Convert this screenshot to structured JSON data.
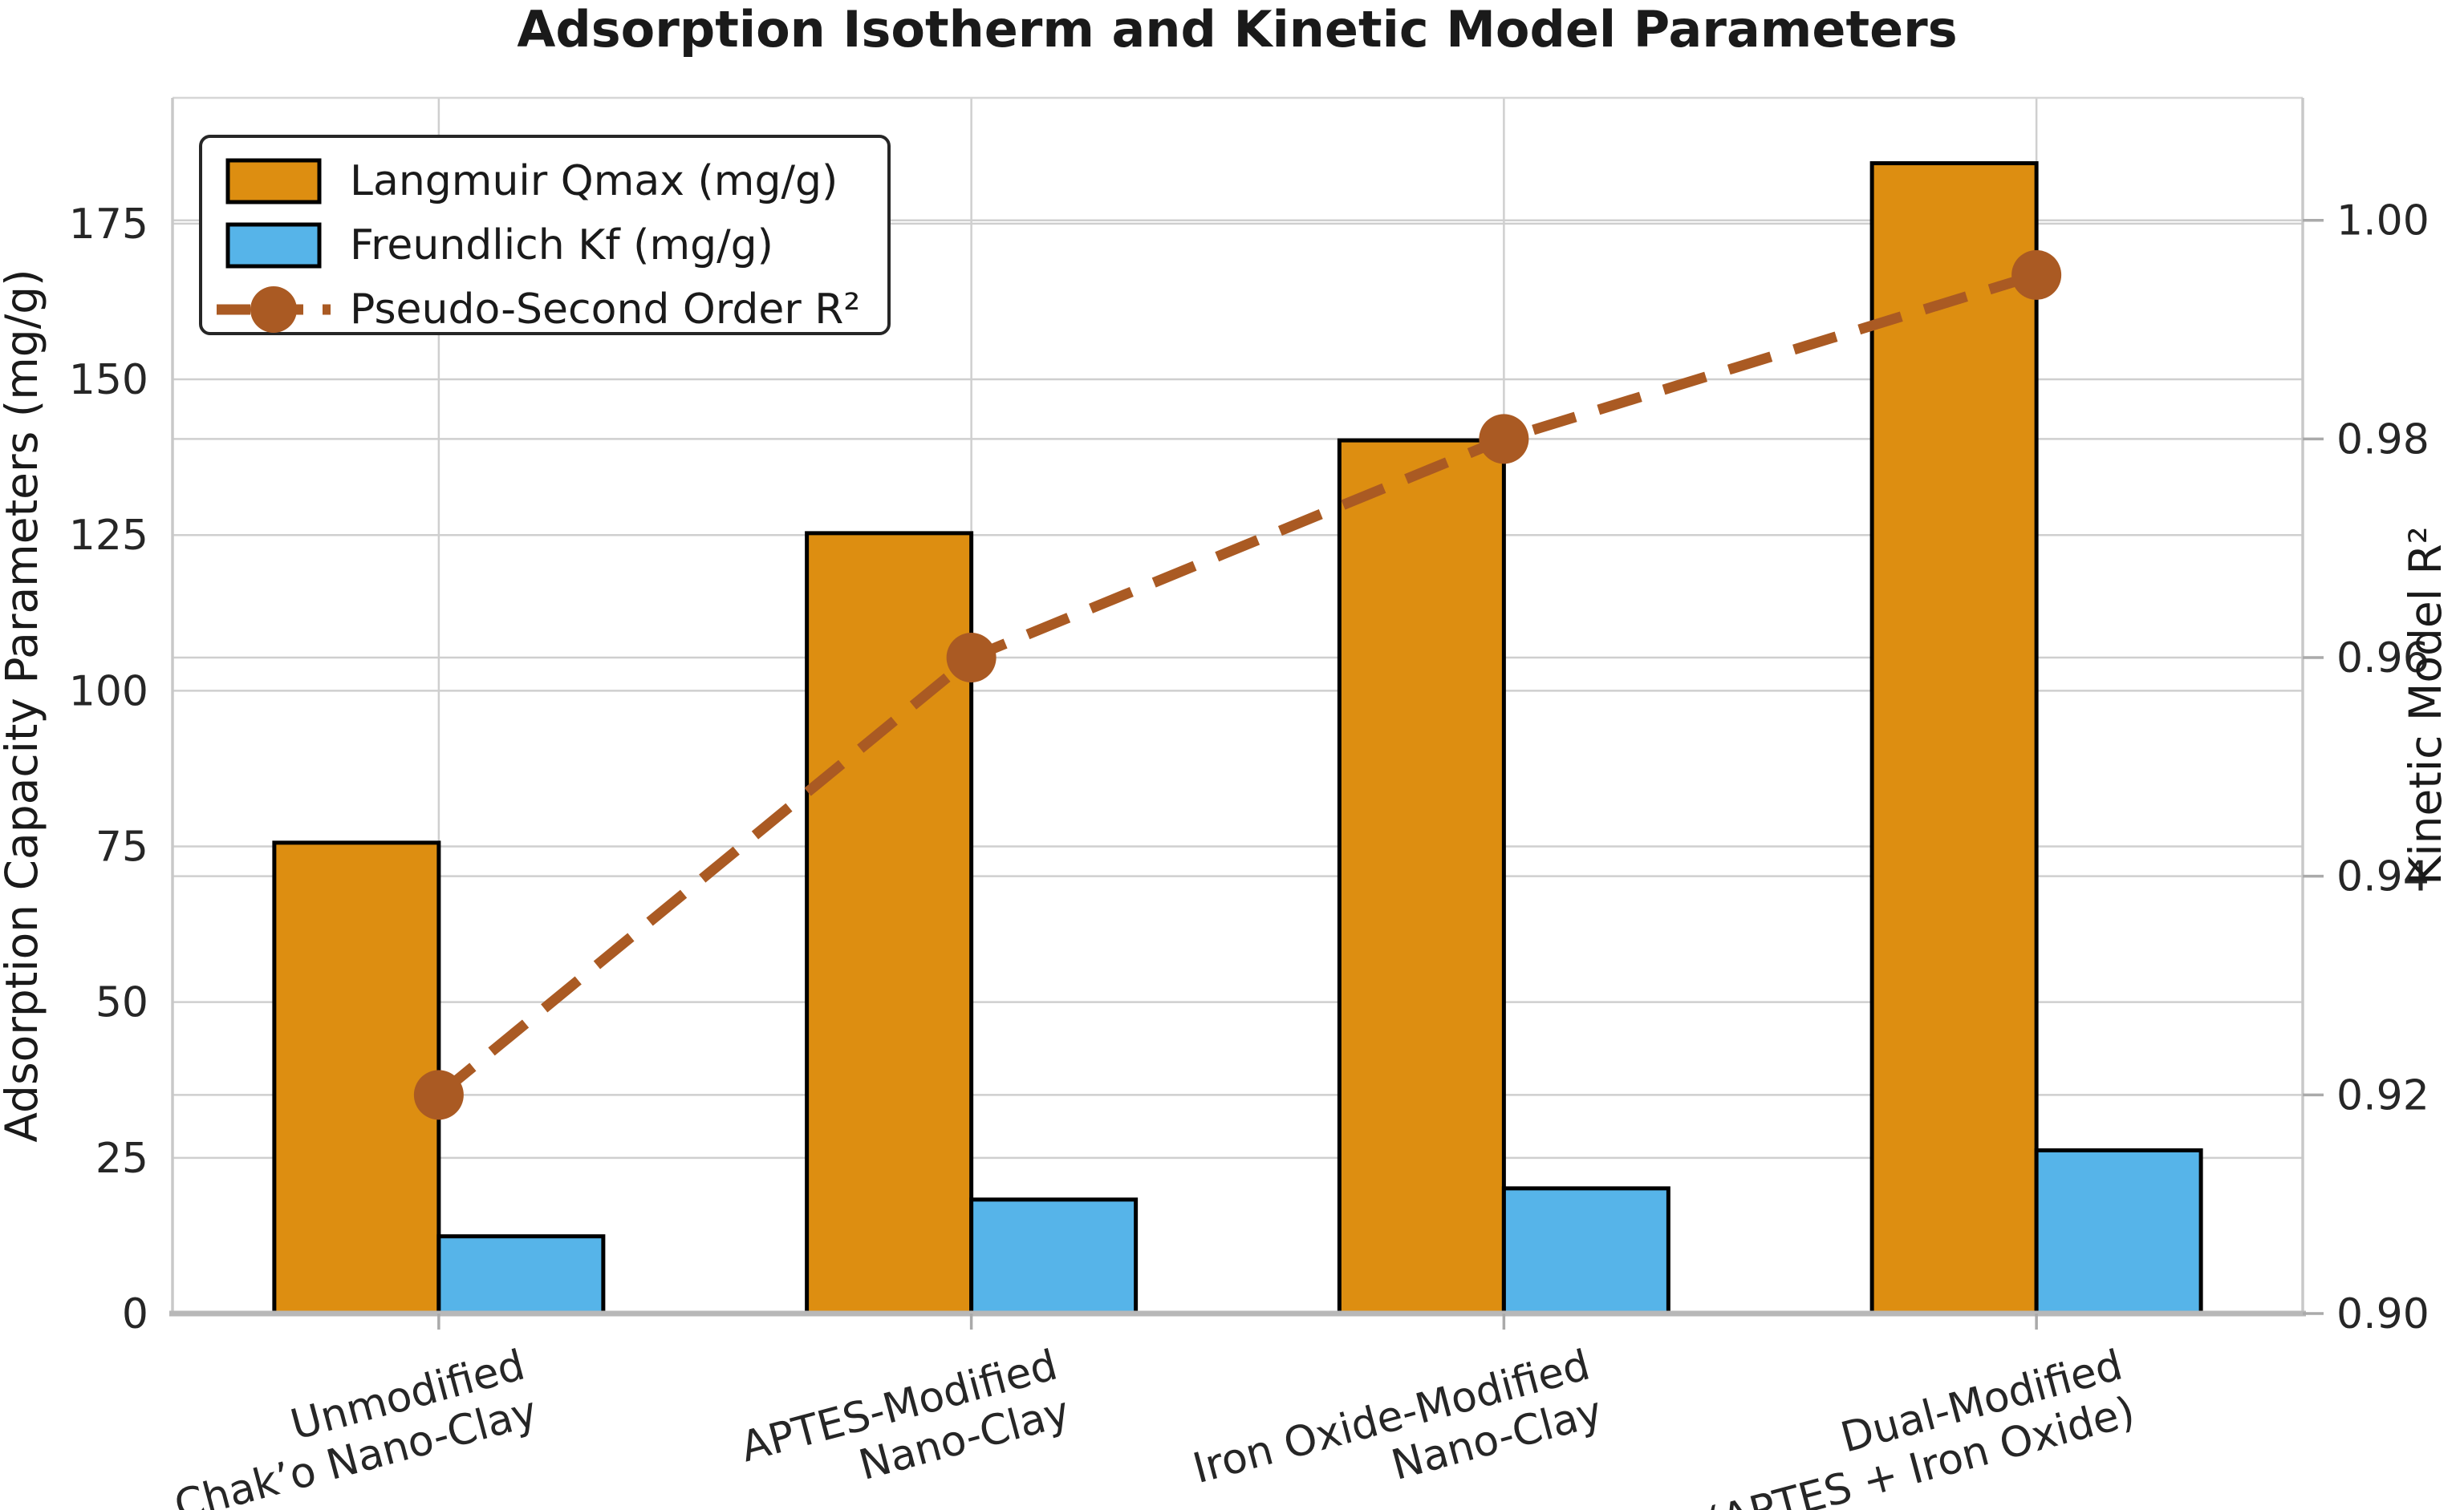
{
  "title": "Adsorption Isotherm and Kinetic Model Parameters",
  "left_axis": {
    "label": "Adsorption Capacity Parameters (mg/g)",
    "ticks": [
      "0",
      "25",
      "50",
      "75",
      "100",
      "125",
      "150",
      "175"
    ]
  },
  "right_axis": {
    "label": "Kinetic Model R²",
    "ticks": [
      "0.90",
      "0.92",
      "0.94",
      "0.96",
      "0.98",
      "1.00"
    ]
  },
  "legend": {
    "entries": [
      "Langmuir Qmax (mg/g)",
      "Freundlich Kf (mg/g)",
      "Pseudo-Second Order R²"
    ]
  },
  "colors": {
    "qmax_bar": "#DD8E11",
    "kf_bar": "#56B4E9",
    "r2_line": "#AA5A23",
    "bar_edge": "#000000",
    "grid": "#cfcfcf",
    "left_spine": "#c8c8c8",
    "bottom_spine": "#b8b8b8",
    "tick_mark": "#aaaaaa",
    "legend_border": "#262626",
    "background": "#ffffff"
  },
  "chart_data": {
    "type": "bar",
    "title": "Adsorption Isotherm and Kinetic Model Parameters",
    "categories": [
      "Unmodified Chak’o Nano-Clay",
      "APTES-Modified Nano-Clay",
      "Iron Oxide-Modified Nano-Clay",
      "Dual-Modified (APTES + Iron Oxide)"
    ],
    "category_lines": [
      [
        "Unmodified",
        "Chak’o Nano-Clay"
      ],
      [
        "APTES-Modified",
        "Nano-Clay"
      ],
      [
        "Iron Oxide-Modified",
        "Nano-Clay"
      ],
      [
        "Dual-Modified",
        "(APTES + Iron Oxide)"
      ]
    ],
    "series": [
      {
        "name": "Langmuir Qmax (mg/g)",
        "type": "bar",
        "axis": "left",
        "color": "#DD8E11",
        "values": [
          75.6,
          125.3,
          140.2,
          184.7
        ]
      },
      {
        "name": "Freundlich Kf (mg/g)",
        "type": "bar",
        "axis": "left",
        "color": "#56B4E9",
        "values": [
          12.4,
          18.3,
          20.1,
          26.2
        ]
      },
      {
        "name": "Pseudo-Second Order R²",
        "type": "line",
        "axis": "right",
        "color": "#AA5A23",
        "linestyle": "dashed",
        "marker": "circle",
        "values": [
          0.92,
          0.96,
          0.98,
          0.995
        ]
      }
    ],
    "ylabel": "Adsorption Capacity Parameters (mg/g)",
    "ylabel_right": "Kinetic Model R²",
    "left_ylim": [
      0,
      195.2
    ],
    "right_ylim": [
      0.9,
      1.0112
    ],
    "left_ticks": [
      0,
      25,
      50,
      75,
      100,
      125,
      150,
      175
    ],
    "right_ticks": [
      0.9,
      0.92,
      0.94,
      0.96,
      0.98,
      1.0
    ],
    "grid": true,
    "legend_position": "upper left"
  }
}
